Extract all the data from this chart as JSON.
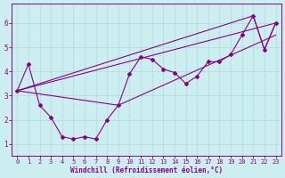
{
  "xlabel": "Windchill (Refroidissement éolien,°C)",
  "background_color": "#cdeef0",
  "line_color": "#880088",
  "grid_color": "#b8dfe0",
  "xlim": [
    -0.5,
    23.5
  ],
  "ylim": [
    0.5,
    6.8
  ],
  "xticks": [
    0,
    1,
    2,
    3,
    4,
    5,
    6,
    7,
    8,
    9,
    10,
    11,
    12,
    13,
    14,
    15,
    16,
    17,
    18,
    19,
    20,
    21,
    22,
    23
  ],
  "yticks": [
    1,
    2,
    3,
    4,
    5,
    6
  ],
  "curve1_x": [
    0,
    1,
    2,
    3,
    4,
    5,
    6,
    7,
    8,
    9,
    10,
    11,
    12,
    13,
    14,
    15,
    16,
    17,
    18,
    19,
    20,
    21,
    22,
    23
  ],
  "curve1_y": [
    3.2,
    4.3,
    2.6,
    2.1,
    1.3,
    1.2,
    1.3,
    1.2,
    2.0,
    2.6,
    3.9,
    4.6,
    4.5,
    4.1,
    3.95,
    3.5,
    3.8,
    4.4,
    4.4,
    4.7,
    5.5,
    6.3,
    4.9,
    6.0
  ],
  "line2_x": [
    0,
    23
  ],
  "line2_y": [
    3.2,
    6.0
  ],
  "line3_x": [
    0,
    9,
    23
  ],
  "line3_y": [
    3.2,
    2.6,
    5.5
  ],
  "line4_x": [
    0,
    21,
    22,
    23
  ],
  "line4_y": [
    3.2,
    6.3,
    4.9,
    6.0
  ]
}
